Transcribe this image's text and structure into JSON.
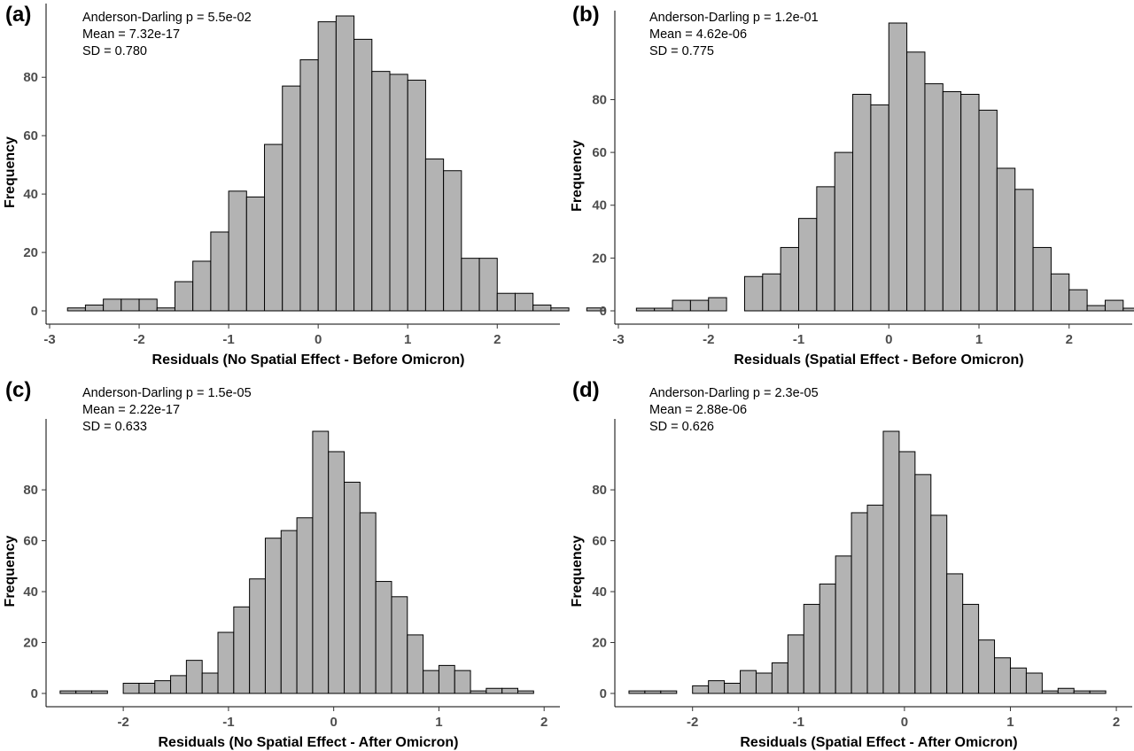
{
  "chart_data": [
    {
      "panel": "(a)",
      "type": "bar",
      "title": "",
      "xlabel": "Residuals (No Spatial Effect - Before Omicron)",
      "ylabel": "Frequency",
      "annotations": [
        "Anderson-Darling p = 5.5e-02",
        "Mean = 7.32e-17",
        "SD = 0.780"
      ],
      "bin_start": -2.8,
      "bin_width": 0.2,
      "values": [
        1,
        2,
        4,
        4,
        4,
        1,
        10,
        17,
        27,
        41,
        39,
        57,
        77,
        86,
        99,
        101,
        93,
        82,
        81,
        79,
        52,
        48,
        18,
        18,
        6,
        6,
        2,
        1,
        0,
        1
      ],
      "xlim": [
        -3,
        2.7
      ],
      "ylim": [
        0,
        101
      ],
      "xticks": [
        -3,
        -2,
        -1,
        0,
        1,
        2
      ],
      "xtick_labels": [
        "-3",
        "-2",
        "-1",
        "0",
        "1",
        "2"
      ],
      "yticks": [
        0,
        20,
        40,
        60,
        80
      ],
      "ytick_labels": [
        "0",
        "20",
        "40",
        "60",
        "80"
      ],
      "grid": false
    },
    {
      "panel": "(b)",
      "type": "bar",
      "title": "",
      "xlabel": "Residuals (Spatial Effect - Before Omicron)",
      "ylabel": "Frequency",
      "annotations": [
        "Anderson-Darling p = 1.2e-01",
        "Mean = 4.62e-06",
        "SD = 0.775"
      ],
      "bin_start": -2.8,
      "bin_width": 0.2,
      "values": [
        1,
        1,
        4,
        4,
        5,
        0,
        13,
        14,
        24,
        35,
        47,
        60,
        82,
        78,
        109,
        98,
        86,
        83,
        82,
        76,
        54,
        46,
        24,
        14,
        8,
        2,
        4,
        1,
        0,
        1
      ],
      "xlim": [
        -3,
        2.7
      ],
      "ylim": [
        0,
        109
      ],
      "xticks": [
        -3,
        -2,
        -1,
        0,
        1,
        2
      ],
      "xtick_labels": [
        "-3",
        "-2",
        "-1",
        "0",
        "1",
        "2"
      ],
      "yticks": [
        0,
        20,
        40,
        60,
        80
      ],
      "ytick_labels": [
        "0",
        "20",
        "40",
        "60",
        "80"
      ],
      "grid": false
    },
    {
      "panel": "(c)",
      "type": "bar",
      "title": "",
      "xlabel": "Residuals (No Spatial Effect - After Omicron)",
      "ylabel": "Frequency",
      "annotations": [
        "Anderson-Darling p = 1.5e-05",
        "Mean = 2.22e-17",
        "SD = 0.633"
      ],
      "bin_start": -2.6,
      "bin_width": 0.15,
      "values": [
        1,
        1,
        1,
        0,
        4,
        4,
        5,
        7,
        13,
        8,
        24,
        34,
        45,
        61,
        64,
        69,
        103,
        95,
        83,
        71,
        44,
        38,
        23,
        9,
        11,
        9,
        1,
        2,
        2,
        1
      ],
      "xlim": [
        -2.7,
        2.15
      ],
      "ylim": [
        0,
        103
      ],
      "xticks": [
        -2,
        -1,
        0,
        1,
        2
      ],
      "xtick_labels": [
        "-2",
        "-1",
        "0",
        "1",
        "2"
      ],
      "yticks": [
        0,
        20,
        40,
        60,
        80
      ],
      "ytick_labels": [
        "0",
        "20",
        "40",
        "60",
        "80"
      ],
      "grid": false
    },
    {
      "panel": "(d)",
      "type": "bar",
      "title": "",
      "xlabel": "Residuals (Spatial Effect - After Omicron)",
      "ylabel": "Frequency",
      "annotations": [
        "Anderson-Darling p = 2.3e-05",
        "Mean = 2.88e-06",
        "SD = 0.626"
      ],
      "bin_start": -2.6,
      "bin_width": 0.15,
      "values": [
        1,
        1,
        1,
        0,
        3,
        5,
        4,
        9,
        8,
        12,
        23,
        35,
        43,
        54,
        71,
        74,
        103,
        95,
        86,
        70,
        47,
        35,
        21,
        14,
        10,
        8,
        1,
        2,
        1,
        1
      ],
      "xlim": [
        -2.7,
        2.15
      ],
      "ylim": [
        0,
        103
      ],
      "xticks": [
        -2,
        -1,
        0,
        1,
        2
      ],
      "xtick_labels": [
        "-2",
        "-1",
        "0",
        "1",
        "2"
      ],
      "yticks": [
        0,
        20,
        40,
        60,
        80
      ],
      "ytick_labels": [
        "0",
        "20",
        "40",
        "60",
        "80"
      ],
      "grid": false
    }
  ],
  "colors": {
    "bar_fill": "#b3b3b3",
    "bar_stroke": "#000000",
    "tick_text": "#4d4d4d",
    "axis_text": "#000000"
  }
}
